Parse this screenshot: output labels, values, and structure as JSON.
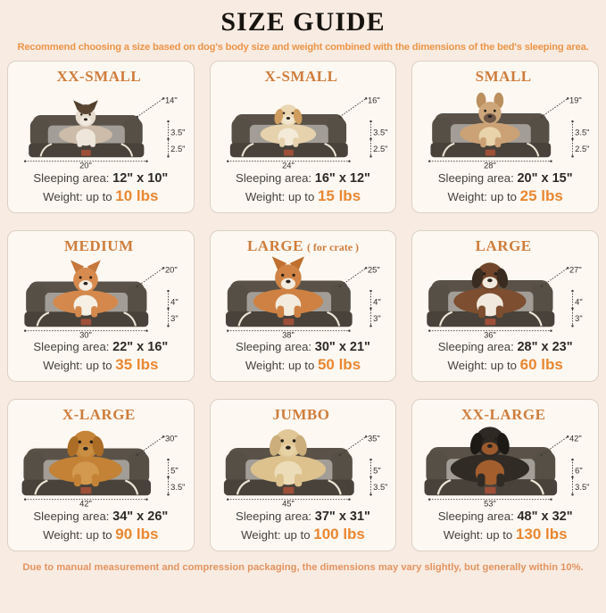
{
  "page": {
    "title": "SIZE GUIDE",
    "subtitle": "Recommend choosing a size based on dog's body size and weight combined with the dimensions of the bed's sleeping area.",
    "footnote": "Due to manual measurement and compression packaging, the dimensions may vary slightly, but generally within 10%."
  },
  "labels": {
    "sleeping": "Sleeping area:",
    "weight": "Weight: up to"
  },
  "palette": {
    "background": "#f8ebe2",
    "card_background": "#fdf8f2",
    "card_border": "#dbd1c5",
    "title_orange": "#cf7d3c",
    "accent_orange": "#e98731",
    "subtitle_orange": "#eb9549",
    "footnote_orange": "#e29460",
    "text_dark": "#2d2a27",
    "bed_dark": "#5a5248",
    "bed_mid": "#564f45",
    "bed_base": "#48423a",
    "cushion": "#a29e97",
    "piping": "#ece5d6",
    "tag": "#9e4f38",
    "dim_line": "#3f3b36",
    "dim_text": "#2f2c28"
  },
  "sizes": [
    {
      "name": "XX-SMALL",
      "name_note": "",
      "pet": "ragdoll-cat",
      "dims": {
        "depth": "14\"",
        "bolster": "3.5\"",
        "base": "2.5\"",
        "width": "20\""
      },
      "sleeping_value": "12\" x 10\"",
      "weight_value": "10 lbs",
      "dog": {
        "ear_type": "point",
        "body": "#cdbca9",
        "chest": "#eee6da",
        "legs": "#eee6da",
        "head": "#e7ddcf",
        "ears": "#52402f",
        "mask": "#5a4532",
        "muzzle": "#f1eae0"
      }
    },
    {
      "name": "X-SMALL",
      "name_note": "",
      "pet": "shih-tzu-puppy",
      "dims": {
        "depth": "16\"",
        "bolster": "3.5\"",
        "base": "2.5\"",
        "width": "24\""
      },
      "sleeping_value": "16\" x 12\"",
      "weight_value": "15 lbs",
      "dog": {
        "ear_type": "drop",
        "body": "#e6d2ad",
        "chest": "#f3ead8",
        "head": "#ead7b2",
        "ears": "#cf9d5f",
        "mask": null,
        "muzzle": "#f0e6d0"
      }
    },
    {
      "name": "SMALL",
      "name_note": "",
      "pet": "french-bulldog",
      "dims": {
        "depth": "19\"",
        "bolster": "3.5\"",
        "base": "2.5\"",
        "width": "28\""
      },
      "sleeping_value": "20\" x 15\"",
      "weight_value": "25 lbs",
      "dog": {
        "ear_type": "bat",
        "body": "#cba276",
        "chest": "#e8d3ab",
        "head": "#cda67a",
        "ears": "#bb8f5e",
        "mask": null,
        "muzzle": "#6f5848"
      }
    },
    {
      "name": "MEDIUM",
      "name_note": "",
      "pet": "corgi",
      "dims": {
        "depth": "20\"",
        "bolster": "4\"",
        "base": "3\"",
        "width": "30\""
      },
      "sleeping_value": "22\" x 16\"",
      "weight_value": "35 lbs",
      "dog": {
        "ear_type": "point",
        "body": "#d4884c",
        "chest": "#f5efe4",
        "head": "#d68a4e",
        "ears": "#c5773d",
        "mask": null,
        "muzzle": "#f5efe4"
      }
    },
    {
      "name": "LARGE",
      "name_note": "( for crate )",
      "pet": "shiba-inu",
      "dims": {
        "depth": "25\"",
        "bolster": "4\"",
        "base": "3\"",
        "width": "38\""
      },
      "sleeping_value": "30\" x 21\"",
      "weight_value": "50 lbs",
      "dog": {
        "ear_type": "point",
        "body": "#ce8142",
        "chest": "#f3ebdd",
        "head": "#d08344",
        "ears": "#c06f2e",
        "mask": null,
        "muzzle": "#f3ebdd"
      }
    },
    {
      "name": "LARGE",
      "name_note": "",
      "pet": "australian-shepherd",
      "dims": {
        "depth": "27\"",
        "bolster": "4\"",
        "base": "3\"",
        "width": "36\""
      },
      "sleeping_value": "28\" x 23\"",
      "weight_value": "60 lbs",
      "dog": {
        "ear_type": "drop",
        "body": "#7d4e2f",
        "chest": "#f1e9dd",
        "head": "#70452a",
        "ears": "#3a2b20",
        "mask": null,
        "muzzle": "#f1e9dd"
      }
    },
    {
      "name": "X-LARGE",
      "name_note": "",
      "pet": "golden-retriever",
      "dims": {
        "depth": "30\"",
        "bolster": "5\"",
        "base": "3.5\"",
        "width": "42\""
      },
      "sleeping_value": "34\" x 26\"",
      "weight_value": "90 lbs",
      "dog": {
        "ear_type": "drop",
        "body": "#c38236",
        "chest": "#d3994e",
        "head": "#c58438",
        "ears": "#ab6c26",
        "mask": null,
        "muzzle": "#c98f42"
      }
    },
    {
      "name": "JUMBO",
      "name_note": "",
      "pet": "labrador",
      "dims": {
        "depth": "35\"",
        "bolster": "5\"",
        "base": "3.5\"",
        "width": "45\""
      },
      "sleeping_value": "37\" x 31\"",
      "weight_value": "100 lbs",
      "dog": {
        "ear_type": "drop",
        "body": "#ddc28d",
        "chest": "#ecdcb8",
        "head": "#e0c795",
        "ears": "#ccae7c",
        "mask": null,
        "muzzle": "#e6d2a4"
      }
    },
    {
      "name": "XX-LARGE",
      "name_note": "",
      "pet": "rottweiler",
      "dims": {
        "depth": "42\"",
        "bolster": "6\"",
        "base": "3.5\"",
        "width": "53\""
      },
      "sleeping_value": "48\" x 32\"",
      "weight_value": "130 lbs",
      "dog": {
        "ear_type": "drop",
        "body": "#312b25",
        "chest": "#a25e2d",
        "head": "#2f2924",
        "ears": "#1d1915",
        "mask": null,
        "muzzle": "#9c5a2c"
      }
    }
  ]
}
